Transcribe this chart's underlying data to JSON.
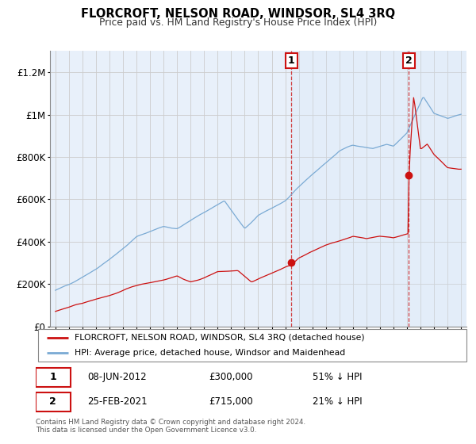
{
  "title": "FLORCROFT, NELSON ROAD, WINDSOR, SL4 3RQ",
  "subtitle": "Price paid vs. HM Land Registry's House Price Index (HPI)",
  "hpi_color": "#7aaad4",
  "hpi_fill_color": "#d6e8f7",
  "price_color": "#cc1111",
  "ylim": [
    0,
    1300000
  ],
  "yticks": [
    0,
    200000,
    400000,
    600000,
    800000,
    1000000,
    1200000
  ],
  "ytick_labels": [
    "£0",
    "£200K",
    "£400K",
    "£600K",
    "£800K",
    "£1M",
    "£1.2M"
  ],
  "sale1_year": 2012.45,
  "sale1_price": 300000,
  "sale1_label": "08-JUN-2012",
  "sale1_pct": "51% ↓ HPI",
  "sale2_year": 2021.12,
  "sale2_price": 715000,
  "sale2_label": "25-FEB-2021",
  "sale2_pct": "21% ↓ HPI",
  "legend_label1": "FLORCROFT, NELSON ROAD, WINDSOR, SL4 3RQ (detached house)",
  "legend_label2": "HPI: Average price, detached house, Windsor and Maidenhead",
  "footer": "Contains HM Land Registry data © Crown copyright and database right 2024.\nThis data is licensed under the Open Government Licence v3.0.",
  "background_color": "#e8f0fa"
}
